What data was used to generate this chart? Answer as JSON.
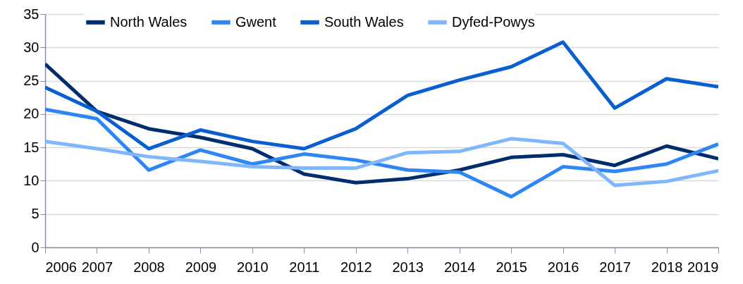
{
  "chart_data": {
    "type": "line",
    "x": [
      2006,
      2007,
      2008,
      2009,
      2010,
      2011,
      2012,
      2013,
      2014,
      2015,
      2016,
      2017,
      2018,
      2019
    ],
    "series": [
      {
        "name": "North Wales",
        "color": "#002d6e",
        "values": [
          27.5,
          20.4,
          17.8,
          16.5,
          14.8,
          11.0,
          9.7,
          10.3,
          11.6,
          13.5,
          13.9,
          12.3,
          15.2,
          13.3
        ]
      },
      {
        "name": "Gwent",
        "color": "#2e86f5",
        "values": [
          20.7,
          19.3,
          11.6,
          14.6,
          12.5,
          14.0,
          13.1,
          11.6,
          11.3,
          7.6,
          12.1,
          11.4,
          12.5,
          15.5
        ]
      },
      {
        "name": "South Wales",
        "color": "#0a5fd0",
        "values": [
          24.0,
          20.4,
          14.8,
          17.6,
          15.9,
          14.8,
          17.8,
          22.8,
          25.1,
          27.1,
          30.8,
          20.9,
          25.3,
          24.1
        ]
      },
      {
        "name": "Dyfed-Powys",
        "color": "#80b6fa",
        "values": [
          15.9,
          14.8,
          13.6,
          12.9,
          12.1,
          11.9,
          11.9,
          14.2,
          14.4,
          16.3,
          15.6,
          9.3,
          9.9,
          11.5
        ]
      }
    ],
    "xlim": [
      2006,
      2019
    ],
    "xticks": [
      2006,
      2007,
      2008,
      2009,
      2010,
      2011,
      2012,
      2013,
      2014,
      2015,
      2016,
      2017,
      2018,
      2019
    ],
    "ylim": [
      0,
      35
    ],
    "yticks": [
      0,
      5,
      10,
      15,
      20,
      25,
      30,
      35
    ],
    "grid": "y",
    "legend": "top",
    "marker": "none",
    "line_style": "solid"
  }
}
